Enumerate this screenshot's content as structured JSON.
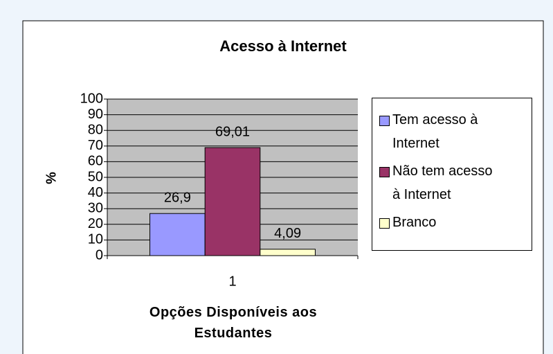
{
  "chart_data": {
    "type": "bar",
    "title": "Acesso à Internet",
    "x_label": "Opções Disponíveis aos Estudantes",
    "y_label": "%",
    "categories": [
      "1"
    ],
    "series": [
      {
        "name": "Tem acesso à Internet",
        "color": "#9999ff",
        "values": [
          26.9
        ],
        "value_labels": [
          "26,9"
        ]
      },
      {
        "name": "Não tem acesso à Internet",
        "color": "#993366",
        "values": [
          69.01
        ],
        "value_labels": [
          "69,01"
        ]
      },
      {
        "name": "Branco",
        "color": "#ffffcc",
        "values": [
          4.09
        ],
        "value_labels": [
          "4,09"
        ]
      }
    ],
    "ylim": [
      0,
      100
    ],
    "yticks": [
      0,
      10,
      20,
      30,
      40,
      50,
      60,
      70,
      80,
      90,
      100
    ],
    "grid": true,
    "plot_background": "#c0c0c0",
    "legend": "right"
  }
}
